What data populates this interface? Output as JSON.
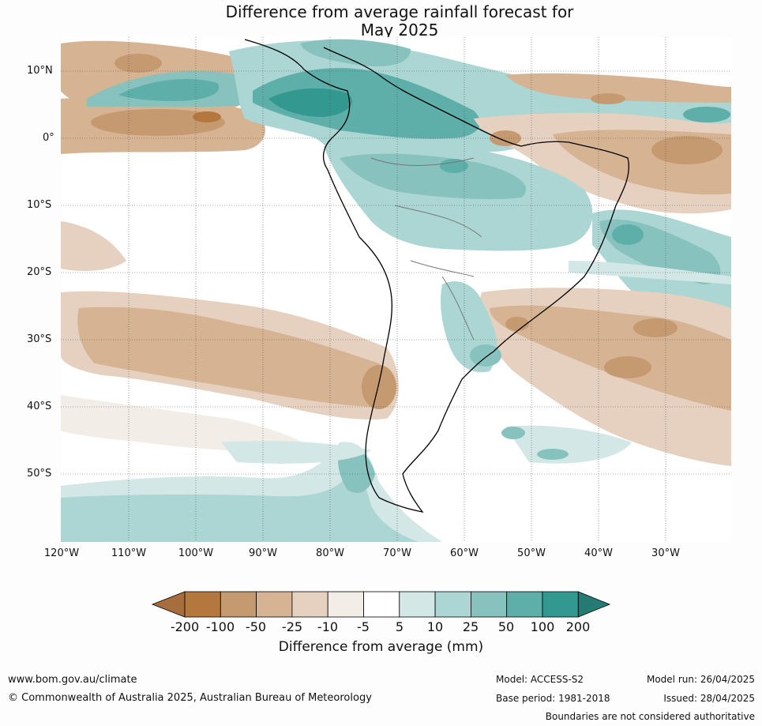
{
  "title": {
    "line1": "Difference from average rainfall forecast for",
    "line2": "May 2025"
  },
  "map": {
    "latitude_labels": [
      "10°N",
      "0°",
      "10°S",
      "20°S",
      "30°S",
      "40°S",
      "50°S"
    ],
    "longitude_labels": [
      "120°W",
      "110°W",
      "100°W",
      "90°W",
      "80°W",
      "70°W",
      "60°W",
      "50°W",
      "40°W",
      "30°W"
    ]
  },
  "colorbar": {
    "ticks": [
      "-200",
      "-100",
      "-50",
      "-25",
      "-10",
      "-5",
      "5",
      "10",
      "25",
      "50",
      "100",
      "200"
    ],
    "colors": [
      "#a76d3d",
      "#b4783f",
      "#c59a70",
      "#d6b393",
      "#e6d1c0",
      "#f3ede7",
      "#ffffff",
      "#d3e8e6",
      "#abd6d3",
      "#87c2bf",
      "#5eaeaa",
      "#33988f",
      "#267a74"
    ],
    "label": "Difference from average (mm)"
  },
  "footer": {
    "website": "www.bom.gov.au/climate",
    "copyright": "© Commonwealth of Australia 2025, Australian Bureau of Meteorology",
    "model": "Model: ACCESS-S2",
    "base_period": "Base period: 1981-2018",
    "model_run": "Model run: 26/04/2025",
    "issued": "Issued: 28/04/2025",
    "disclaimer": "Boundaries are not considered authoritative"
  }
}
